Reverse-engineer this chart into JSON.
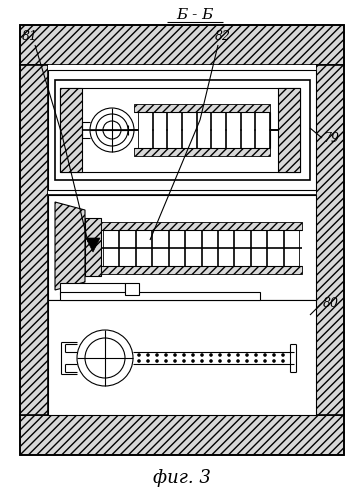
{
  "title": "Б - Б",
  "fig_label": "фиг. 3",
  "label_81": "81",
  "label_82": "82",
  "label_79": "79",
  "label_80": "80",
  "bg_color": "#ffffff",
  "line_color": "#000000",
  "figsize": [
    3.64,
    5.0
  ],
  "dpi": 100
}
